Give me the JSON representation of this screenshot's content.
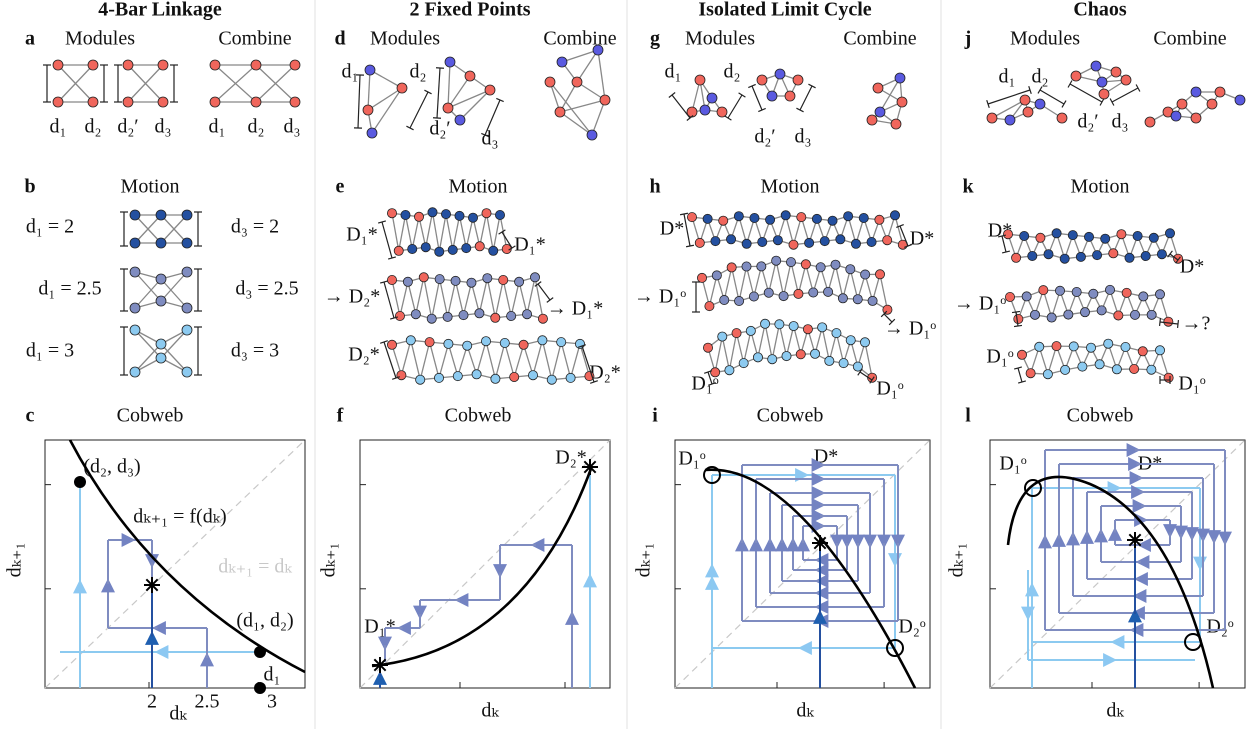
{
  "columns": [
    {
      "title": "4-Bar Linkage",
      "modules": {
        "letter": "a",
        "headings": [
          "Modules",
          "Combine"
        ],
        "labels": [
          "d₁",
          "d₂",
          "d₂′",
          "d₃",
          "d₁",
          "d₂",
          "d₃"
        ]
      },
      "motion": {
        "letter": "b",
        "heading": "Motion",
        "labels": [
          "d₁ = 2",
          "d₃ = 2",
          "d₁ = 2.5",
          "d₃ = 2.5",
          "d₁ = 3",
          "d₃ = 3"
        ]
      },
      "cobweb": {
        "letter": "c",
        "heading": "Cobweb",
        "labels": [
          "(d₂, d₃)",
          "dₖ₊₁ = f(dₖ)",
          "dₖ₊₁ = dₖ",
          "(d₁, d₂)",
          "d₁"
        ],
        "xticks": [
          2,
          2.5,
          3
        ],
        "x_label": "dₖ",
        "y_label": "dₖ₊₁"
      }
    },
    {
      "title": "2 Fixed Points",
      "modules": {
        "letter": "d",
        "headings": [
          "Modules",
          "Combine"
        ],
        "labels": [
          "d₁",
          "d₂",
          "d₂′",
          "d₃"
        ]
      },
      "motion": {
        "letter": "e",
        "heading": "Motion",
        "labels": [
          "D₁*",
          "D₁*",
          "→ D₂*",
          "→ D₁*",
          "D₂*",
          "D₂*"
        ]
      },
      "cobweb": {
        "letter": "f",
        "heading": "Cobweb",
        "labels": [
          "D₂*",
          "D₁*"
        ],
        "x_label": "dₖ",
        "y_label": "dₖ₊₁"
      }
    },
    {
      "title": "Isolated Limit Cycle",
      "modules": {
        "letter": "g",
        "headings": [
          "Modules",
          "Combine"
        ],
        "labels": [
          "d₁",
          "d₂",
          "d₂′",
          "d₃"
        ]
      },
      "motion": {
        "letter": "h",
        "heading": "Motion",
        "labels": [
          "D*",
          "D*",
          "→ D₁ᵒ",
          "→ D₁ᵒ",
          "D₁ᵒ",
          "D₁ᵒ"
        ]
      },
      "cobweb": {
        "letter": "i",
        "heading": "Cobweb",
        "labels": [
          "D₁ᵒ",
          "D*",
          "D₂ᵒ"
        ],
        "x_label": "dₖ",
        "y_label": "dₖ₊₁"
      }
    },
    {
      "title": "Chaos",
      "modules": {
        "letter": "j",
        "headings": [
          "Modules",
          "Combine"
        ],
        "labels": [
          "d₁",
          "d₂",
          "d₂′",
          "d₃"
        ]
      },
      "motion": {
        "letter": "k",
        "heading": "Motion",
        "labels": [
          "D*",
          "D*",
          "→ D₁ᵒ",
          "→?",
          "D₁ᵒ",
          "D₁ᵒ"
        ]
      },
      "cobweb": {
        "letter": "l",
        "heading": "Cobweb",
        "labels": [
          "D₁ᵒ",
          "D*",
          "D₂ᵒ"
        ],
        "x_label": "dₖ",
        "y_label": "dₖ₊₁"
      }
    }
  ]
}
